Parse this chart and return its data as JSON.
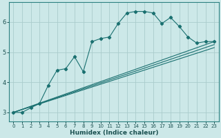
{
  "xlabel": "Humidex (Indice chaleur)",
  "ylabel": "",
  "bg_color": "#cce8e8",
  "line_color": "#1a7070",
  "grid_color": "#aacccc",
  "xlim": [
    -0.5,
    23.5
  ],
  "ylim": [
    2.7,
    6.65
  ],
  "xticks": [
    0,
    1,
    2,
    3,
    4,
    5,
    6,
    7,
    8,
    9,
    10,
    11,
    12,
    13,
    14,
    15,
    16,
    17,
    18,
    19,
    20,
    21,
    22,
    23
  ],
  "yticks": [
    3,
    4,
    5,
    6
  ],
  "series": [
    {
      "x": [
        0,
        1,
        2,
        3,
        4,
        5,
        6,
        7,
        8,
        9,
        10,
        11,
        12,
        13,
        14,
        15,
        16,
        17,
        18,
        19,
        20,
        21,
        22,
        23
      ],
      "y": [
        3.0,
        3.0,
        3.15,
        3.3,
        3.9,
        4.4,
        4.45,
        4.85,
        4.35,
        5.35,
        5.45,
        5.5,
        5.95,
        6.3,
        6.35,
        6.35,
        6.3,
        5.95,
        6.15,
        5.85,
        5.5,
        5.3,
        5.35,
        5.35
      ],
      "marker": true,
      "marker_style": "D"
    },
    {
      "x": [
        0,
        23
      ],
      "y": [
        3.0,
        5.35
      ],
      "marker": false
    },
    {
      "x": [
        0,
        23
      ],
      "y": [
        3.0,
        5.25
      ],
      "marker": false
    },
    {
      "x": [
        0,
        23
      ],
      "y": [
        3.0,
        5.15
      ],
      "marker": false
    }
  ]
}
